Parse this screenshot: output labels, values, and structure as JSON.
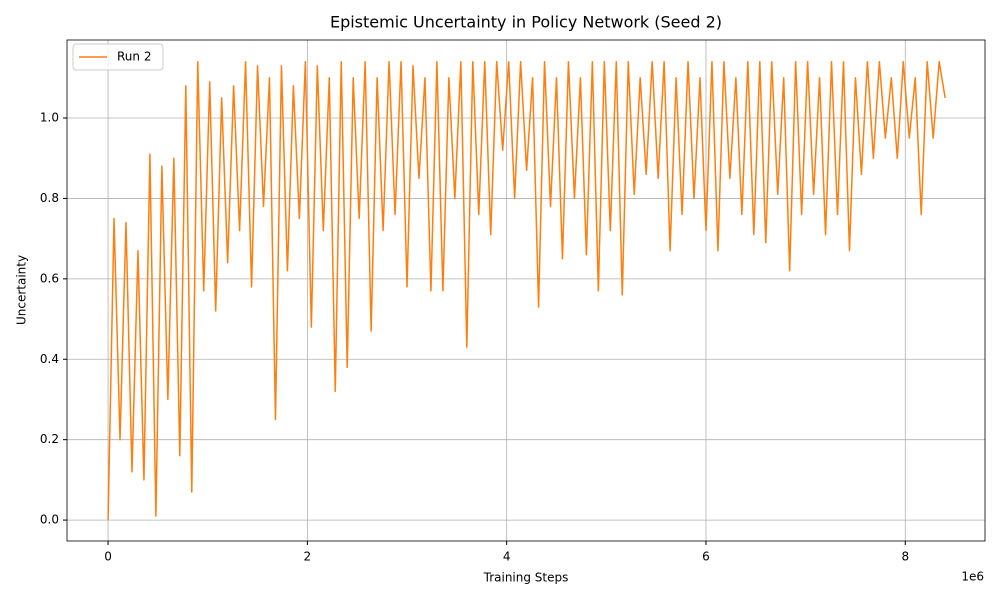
{
  "chart_data": {
    "type": "line",
    "title": "Epistemic Uncertainty in Policy Network (Seed 2)",
    "xlabel": "Training Steps",
    "ylabel": "Uncertainty",
    "x_offset_label": "1e6",
    "x": [
      0,
      60000,
      120000,
      180000,
      240000,
      300000,
      360000,
      420000,
      480000,
      540000,
      600000,
      660000,
      720000,
      780000,
      840000,
      900000,
      960000,
      1020000,
      1080000,
      1140000,
      1200000,
      1260000,
      1320000,
      1380000,
      1440000,
      1500000,
      1560000,
      1620000,
      1680000,
      1740000,
      1800000,
      1860000,
      1920000,
      1980000,
      2040000,
      2100000,
      2160000,
      2220000,
      2280000,
      2340000,
      2400000,
      2460000,
      2520000,
      2580000,
      2640000,
      2700000,
      2760000,
      2820000,
      2880000,
      2940000,
      3000000,
      3060000,
      3120000,
      3180000,
      3240000,
      3300000,
      3360000,
      3420000,
      3480000,
      3540000,
      3600000,
      3660000,
      3720000,
      3780000,
      3840000,
      3900000,
      3960000,
      4020000,
      4080000,
      4140000,
      4200000,
      4260000,
      4320000,
      4380000,
      4440000,
      4500000,
      4560000,
      4620000,
      4680000,
      4740000,
      4800000,
      4860000,
      4920000,
      4980000,
      5040000,
      5100000,
      5160000,
      5220000,
      5280000,
      5340000,
      5400000,
      5460000,
      5520000,
      5580000,
      5640000,
      5700000,
      5760000,
      5820000,
      5880000,
      5940000,
      6000000,
      6060000,
      6120000,
      6180000,
      6240000,
      6300000,
      6360000,
      6420000,
      6480000,
      6540000,
      6600000,
      6660000,
      6720000,
      6780000,
      6840000,
      6900000,
      6960000,
      7020000,
      7080000,
      7140000,
      7200000,
      7260000,
      7320000,
      7380000,
      7440000,
      7500000,
      7560000,
      7620000,
      7680000,
      7740000,
      7800000,
      7860000,
      7920000,
      7980000,
      8040000,
      8100000,
      8160000,
      8220000,
      8280000,
      8340000,
      8400000
    ],
    "series": [
      {
        "name": "Run 2",
        "color": "#ff7f0e",
        "values": [
          0.0,
          0.75,
          0.2,
          0.74,
          0.12,
          0.67,
          0.1,
          0.91,
          0.01,
          0.88,
          0.3,
          0.9,
          0.16,
          1.08,
          0.07,
          1.14,
          0.57,
          1.09,
          0.52,
          1.05,
          0.64,
          1.08,
          0.72,
          1.14,
          0.58,
          1.13,
          0.78,
          1.1,
          0.25,
          1.13,
          0.62,
          1.08,
          0.75,
          1.14,
          0.48,
          1.13,
          0.72,
          1.1,
          0.32,
          1.14,
          0.38,
          1.1,
          0.75,
          1.14,
          0.47,
          1.1,
          0.72,
          1.14,
          0.76,
          1.14,
          0.58,
          1.13,
          0.85,
          1.1,
          0.57,
          1.14,
          0.57,
          1.1,
          0.8,
          1.14,
          0.43,
          1.14,
          0.76,
          1.14,
          0.71,
          1.14,
          0.92,
          1.14,
          0.8,
          1.14,
          0.87,
          1.1,
          0.53,
          1.14,
          0.78,
          1.1,
          0.65,
          1.14,
          0.8,
          1.1,
          0.66,
          1.14,
          0.57,
          1.14,
          0.72,
          1.14,
          0.56,
          1.14,
          0.81,
          1.1,
          0.86,
          1.14,
          0.85,
          1.14,
          0.67,
          1.1,
          0.76,
          1.14,
          0.8,
          1.1,
          0.72,
          1.14,
          0.67,
          1.14,
          0.85,
          1.1,
          0.76,
          1.14,
          0.71,
          1.14,
          0.69,
          1.14,
          0.81,
          1.1,
          0.62,
          1.14,
          0.76,
          1.14,
          0.81,
          1.1,
          0.71,
          1.14,
          0.76,
          1.14,
          0.67,
          1.1,
          0.86,
          1.14,
          0.9,
          1.14,
          0.95,
          1.1,
          0.9,
          1.14,
          0.95,
          1.1,
          0.76,
          1.14,
          0.95,
          1.14,
          1.05
        ]
      }
    ],
    "xlim": [
      -412000,
      8800000
    ],
    "ylim": [
      -0.052,
      1.194
    ],
    "xticks": [
      {
        "value": 0,
        "label": "0"
      },
      {
        "value": 2000000,
        "label": "2"
      },
      {
        "value": 4000000,
        "label": "4"
      },
      {
        "value": 6000000,
        "label": "6"
      },
      {
        "value": 8000000,
        "label": "8"
      }
    ],
    "yticks": [
      {
        "value": 0,
        "label": "0.0"
      },
      {
        "value": 0.2,
        "label": "0.2"
      },
      {
        "value": 0.4,
        "label": "0.4"
      },
      {
        "value": 0.6,
        "label": "0.6"
      },
      {
        "value": 0.8,
        "label": "0.8"
      },
      {
        "value": 1.0,
        "label": "1.0"
      }
    ],
    "grid": true,
    "legend": "upper left"
  }
}
